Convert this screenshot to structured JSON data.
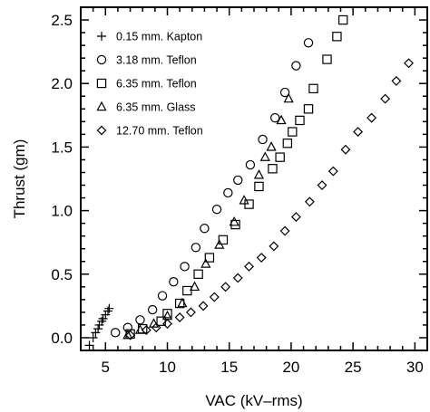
{
  "chart_data": {
    "type": "scatter",
    "xlabel": "VAC  (kV–rms)",
    "ylabel": "Thrust  (gm)",
    "xlim": [
      3,
      31
    ],
    "ylim": [
      -0.1,
      2.6
    ],
    "xticks": [
      5,
      10,
      15,
      20,
      25,
      30
    ],
    "xtick_labels": [
      "5",
      "10",
      "15",
      "20",
      "25",
      "30"
    ],
    "yticks": [
      0.0,
      0.5,
      1.0,
      1.5,
      2.0,
      2.5
    ],
    "ytick_labels": [
      "0.0",
      "0.5",
      "1.0",
      "1.5",
      "2.0",
      "2.5"
    ],
    "grid": false,
    "legend_position": "top-left",
    "series": [
      {
        "name": "0.15 mm. Kapton",
        "marker": "plus",
        "points": [
          [
            3.7,
            -0.06
          ],
          [
            4.0,
            0.0
          ],
          [
            4.2,
            0.04
          ],
          [
            4.4,
            0.07
          ],
          [
            4.5,
            0.1
          ],
          [
            4.7,
            0.13
          ],
          [
            4.8,
            0.15
          ],
          [
            5.0,
            0.18
          ],
          [
            5.2,
            0.21
          ],
          [
            5.3,
            0.23
          ]
        ]
      },
      {
        "name": "3.18 mm. Teflon",
        "marker": "circle",
        "points": [
          [
            5.8,
            0.04
          ],
          [
            6.8,
            0.08
          ],
          [
            7.8,
            0.14
          ],
          [
            8.8,
            0.22
          ],
          [
            9.6,
            0.33
          ],
          [
            10.5,
            0.44
          ],
          [
            11.4,
            0.56
          ],
          [
            12.3,
            0.71
          ],
          [
            13.0,
            0.86
          ],
          [
            14.0,
            1.01
          ],
          [
            14.9,
            1.14
          ],
          [
            15.7,
            1.24
          ],
          [
            16.7,
            1.36
          ],
          [
            17.7,
            1.56
          ],
          [
            18.7,
            1.73
          ],
          [
            19.5,
            1.93
          ],
          [
            20.4,
            2.14
          ],
          [
            21.4,
            2.32
          ]
        ]
      },
      {
        "name": "6.35 mm. Teflon",
        "marker": "square",
        "points": [
          [
            7.0,
            0.03
          ],
          [
            8.0,
            0.07
          ],
          [
            9.5,
            0.13
          ],
          [
            10.0,
            0.19
          ],
          [
            11.0,
            0.27
          ],
          [
            11.6,
            0.37
          ],
          [
            12.5,
            0.5
          ],
          [
            13.4,
            0.63
          ],
          [
            14.5,
            0.77
          ],
          [
            15.5,
            0.89
          ],
          [
            16.6,
            1.05
          ],
          [
            17.4,
            1.19
          ],
          [
            18.5,
            1.33
          ],
          [
            19.1,
            1.42
          ],
          [
            19.7,
            1.53
          ],
          [
            20.1,
            1.62
          ],
          [
            20.7,
            1.71
          ],
          [
            21.4,
            1.8
          ],
          [
            21.8,
            1.96
          ],
          [
            22.9,
            2.19
          ],
          [
            23.7,
            2.37
          ],
          [
            24.2,
            2.5
          ]
        ]
      },
      {
        "name": "6.35 mm. Glass",
        "marker": "triangle",
        "points": [
          [
            6.8,
            0.02
          ],
          [
            7.8,
            0.06
          ],
          [
            8.9,
            0.11
          ],
          [
            10.0,
            0.17
          ],
          [
            11.2,
            0.27
          ],
          [
            12.2,
            0.4
          ],
          [
            13.1,
            0.58
          ],
          [
            14.2,
            0.73
          ],
          [
            15.4,
            0.91
          ],
          [
            16.2,
            1.08
          ],
          [
            17.4,
            1.28
          ],
          [
            17.9,
            1.42
          ],
          [
            18.4,
            1.5
          ],
          [
            19.2,
            1.71
          ],
          [
            19.8,
            1.88
          ]
        ]
      },
      {
        "name": "12.70 mm. Teflon",
        "marker": "diamond",
        "points": [
          [
            7.0,
            0.02
          ],
          [
            8.3,
            0.06
          ],
          [
            9.1,
            0.08
          ],
          [
            10.0,
            0.11
          ],
          [
            11.0,
            0.16
          ],
          [
            11.9,
            0.2
          ],
          [
            12.9,
            0.25
          ],
          [
            13.8,
            0.32
          ],
          [
            14.7,
            0.4
          ],
          [
            15.7,
            0.47
          ],
          [
            16.6,
            0.56
          ],
          [
            17.6,
            0.63
          ],
          [
            18.6,
            0.72
          ],
          [
            19.5,
            0.84
          ],
          [
            20.4,
            0.95
          ],
          [
            21.5,
            1.07
          ],
          [
            22.5,
            1.2
          ],
          [
            23.4,
            1.31
          ],
          [
            24.4,
            1.48
          ],
          [
            25.4,
            1.62
          ],
          [
            26.5,
            1.73
          ],
          [
            27.6,
            1.88
          ],
          [
            28.5,
            2.02
          ],
          [
            29.5,
            2.16
          ]
        ]
      }
    ]
  }
}
